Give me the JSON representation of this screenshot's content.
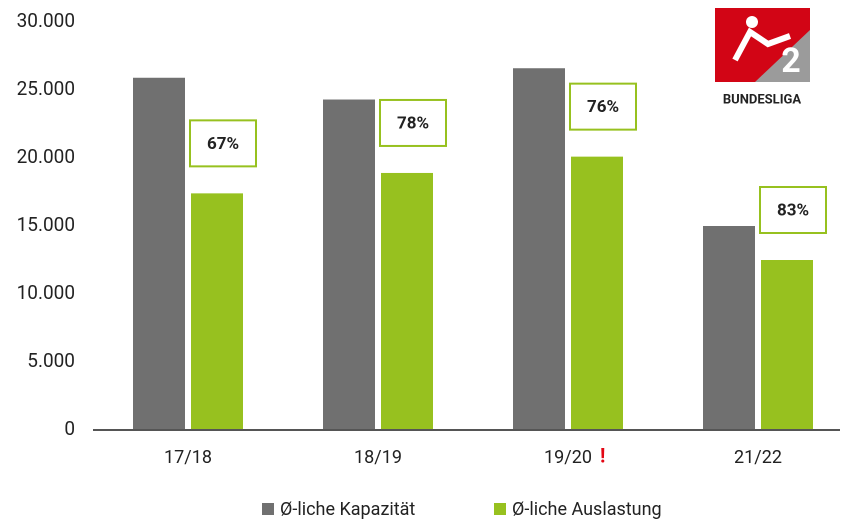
{
  "chart_data": {
    "type": "bar",
    "categories": [
      "17/18",
      "18/19",
      "19/20",
      "21/22"
    ],
    "series": [
      {
        "name": "Ø-liche Kapazität",
        "color": "#707070",
        "values": [
          25900,
          24300,
          26600,
          15000
        ]
      },
      {
        "name": "Ø-liche Auslastung",
        "color": "#97c11f",
        "values": [
          17400,
          18900,
          20100,
          12500
        ]
      }
    ],
    "utilization": {
      "values": [
        67,
        78,
        76,
        83
      ],
      "value_labels": [
        "67%",
        "78%",
        "76%",
        "83%"
      ]
    },
    "annotation": {
      "category": "19/20",
      "text": "!",
      "color": "#e30613"
    },
    "ylim": [
      0,
      30000
    ],
    "yticks": [
      0,
      {
        "value": 5000,
        "label": "5.000"
      },
      {
        "value": 10000,
        "label": "10.000"
      },
      {
        "value": 15000,
        "label": "15.000"
      },
      {
        "value": 20000,
        "label": "20.000"
      },
      {
        "value": 25000,
        "label": "25.000"
      },
      {
        "value": 30000,
        "label": "30.000"
      }
    ],
    "grid": false,
    "legend": "bottom",
    "logo": {
      "number": "2",
      "text": "BUNDESLIGA"
    }
  }
}
